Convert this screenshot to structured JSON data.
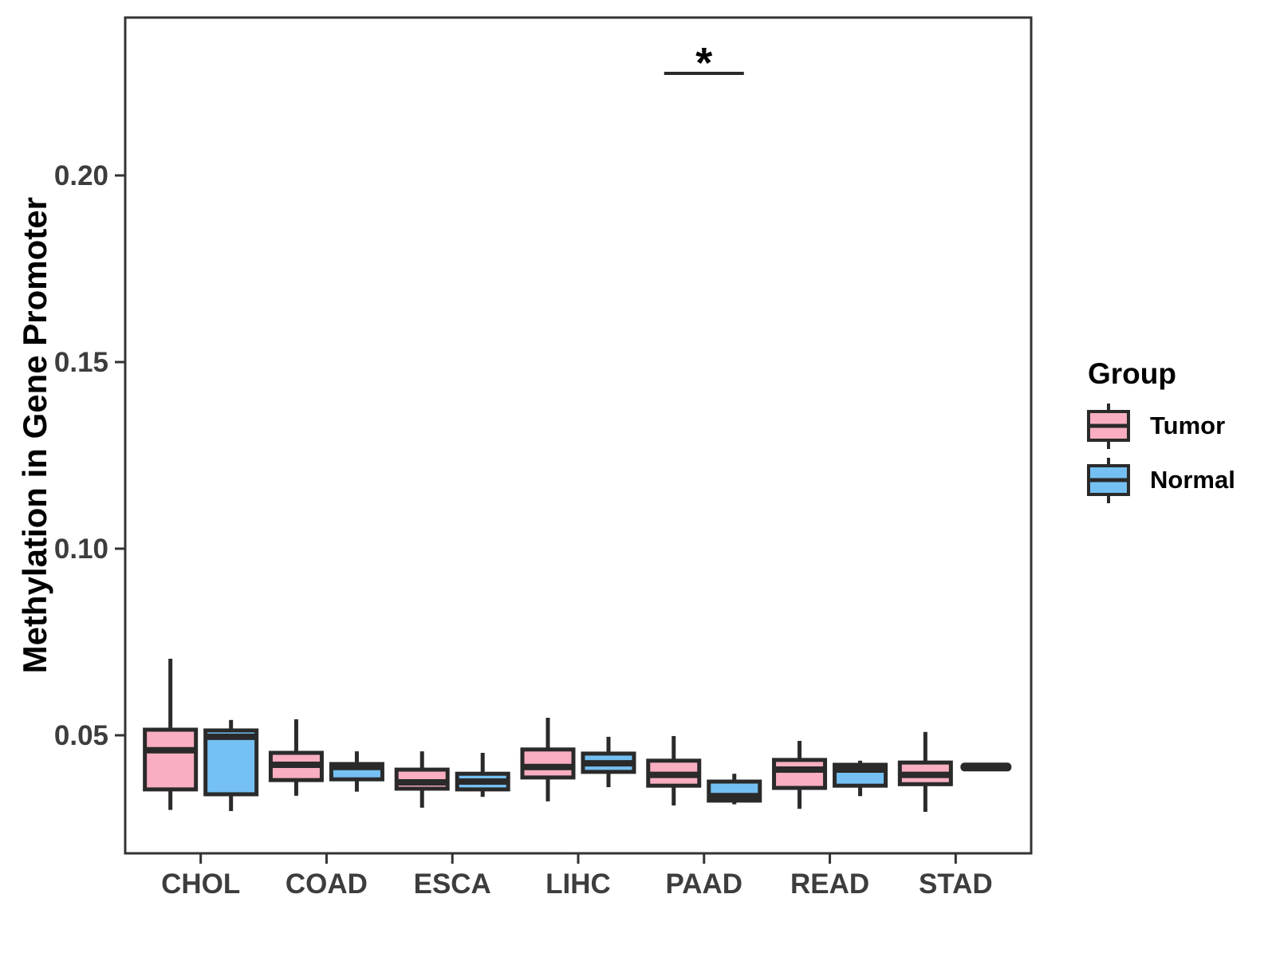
{
  "figure": {
    "y_axis": {
      "title": "Methylation in Gene Promoter",
      "tick_labels": [
        "0.05",
        "0.10",
        "0.15",
        "0.20"
      ]
    },
    "x_axis": {
      "categories": [
        "CHOL",
        "COAD",
        "ESCA",
        "LIHC",
        "PAAD",
        "READ",
        "STAD"
      ]
    },
    "legend": {
      "title": "Group",
      "items": [
        {
          "label": "Tumor",
          "color": "#F9AEC1"
        },
        {
          "label": "Normal",
          "color": "#74C0F2"
        }
      ]
    },
    "colors": {
      "tumor_fill": "#F9AEC1",
      "normal_fill": "#74C0F2",
      "box_line": "#2A2A2A",
      "axis_text": "#3D3D3D",
      "panel_border": "#333333",
      "background": "#FFFFFF"
    }
  },
  "chart_data": {
    "type": "boxplot",
    "title": "",
    "xlabel": "",
    "ylabel": "Methylation in Gene Promoter",
    "categories": [
      "CHOL",
      "COAD",
      "ESCA",
      "LIHC",
      "PAAD",
      "READ",
      "STAD"
    ],
    "yticks": [
      0.05,
      0.1,
      0.15,
      0.2
    ],
    "ytick_labels": [
      "0.05",
      "0.10",
      "0.15",
      "0.20"
    ],
    "ylim": [
      0.018,
      0.242
    ],
    "grid": false,
    "legend_position": "right",
    "series": [
      {
        "name": "Tumor",
        "color": "#F9AEC1",
        "boxes": [
          {
            "whisker_low": 0.03,
            "q1": 0.0355,
            "median": 0.046,
            "q3": 0.0515,
            "whisker_high": 0.0705
          },
          {
            "whisker_low": 0.0338,
            "q1": 0.038,
            "median": 0.0421,
            "q3": 0.0453,
            "whisker_high": 0.0543
          },
          {
            "whisker_low": 0.0306,
            "q1": 0.0357,
            "median": 0.0374,
            "q3": 0.0408,
            "whisker_high": 0.0457
          },
          {
            "whisker_low": 0.0323,
            "q1": 0.0387,
            "median": 0.0415,
            "q3": 0.0462,
            "whisker_high": 0.0547
          },
          {
            "whisker_low": 0.0312,
            "q1": 0.0365,
            "median": 0.0394,
            "q3": 0.0432,
            "whisker_high": 0.0498
          },
          {
            "whisker_low": 0.0303,
            "q1": 0.0359,
            "median": 0.0408,
            "q3": 0.0434,
            "whisker_high": 0.0485
          },
          {
            "whisker_low": 0.0295,
            "q1": 0.0369,
            "median": 0.0394,
            "q3": 0.0427,
            "whisker_high": 0.0509
          }
        ]
      },
      {
        "name": "Normal",
        "color": "#74C0F2",
        "boxes": [
          {
            "whisker_low": 0.0297,
            "q1": 0.0342,
            "median": 0.0496,
            "q3": 0.0513,
            "whisker_high": 0.0541
          },
          {
            "whisker_low": 0.0349,
            "q1": 0.0382,
            "median": 0.0415,
            "q3": 0.0423,
            "whisker_high": 0.0457
          },
          {
            "whisker_low": 0.0335,
            "q1": 0.0355,
            "median": 0.0376,
            "q3": 0.0397,
            "whisker_high": 0.0453
          },
          {
            "whisker_low": 0.0361,
            "q1": 0.0402,
            "median": 0.0425,
            "q3": 0.0451,
            "whisker_high": 0.0496
          },
          {
            "whisker_low": 0.0315,
            "q1": 0.0325,
            "median": 0.0337,
            "q3": 0.0376,
            "whisker_high": 0.0397
          },
          {
            "whisker_low": 0.0337,
            "q1": 0.0365,
            "median": 0.0408,
            "q3": 0.0421,
            "whisker_high": 0.0432
          },
          {
            "single_value": 0.0415
          }
        ]
      }
    ],
    "significance": {
      "label": "*",
      "category": "PAAD"
    }
  }
}
